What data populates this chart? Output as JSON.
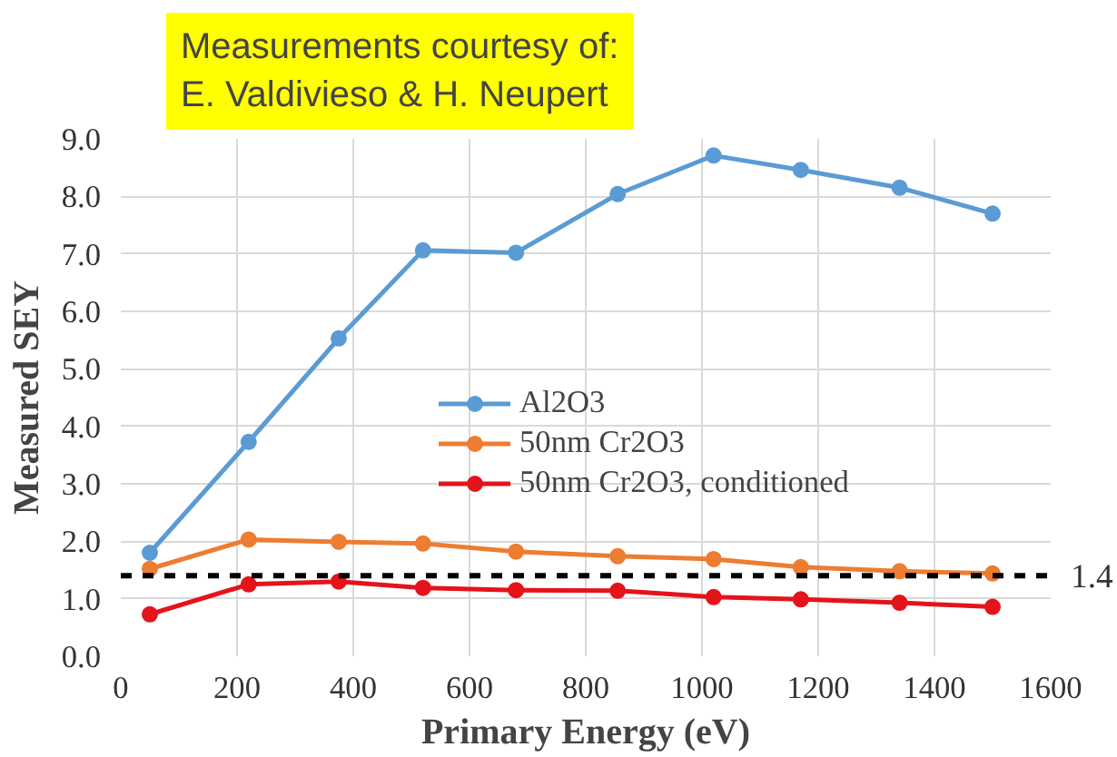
{
  "chart_data": {
    "type": "line",
    "xlabel": "Primary Energy (eV)",
    "ylabel": "Measured SEY",
    "annotations": [
      "Measurements courtesy of:\nE. Valdivieso &  H. Neupert"
    ],
    "x": [
      50,
      220,
      375,
      520,
      680,
      855,
      1020,
      1170,
      1340,
      1500
    ],
    "series": [
      {
        "name": "Al2O3",
        "color": "#5b9bd5",
        "values": [
          1.8,
          3.73,
          5.53,
          7.06,
          7.02,
          8.04,
          8.71,
          8.46,
          8.15,
          7.7
        ]
      },
      {
        "name": "50nm Cr2O3",
        "color": "#ed7d31",
        "values": [
          1.52,
          2.03,
          1.99,
          1.96,
          1.82,
          1.74,
          1.69,
          1.55,
          1.48,
          1.44
        ]
      },
      {
        "name": "50nm Cr2O3, conditioned",
        "color": "#e4141b",
        "values": [
          0.73,
          1.25,
          1.3,
          1.19,
          1.15,
          1.14,
          1.03,
          0.99,
          0.93,
          0.86
        ]
      }
    ],
    "xlim": [
      0,
      1600
    ],
    "xticks": [
      0,
      200,
      400,
      600,
      800,
      1000,
      1200,
      1400,
      1600
    ],
    "ylim": [
      0,
      9
    ],
    "yticks": [
      {
        "value": 0,
        "label": "0.0"
      },
      {
        "value": 1,
        "label": "1.0"
      },
      {
        "value": 2,
        "label": "2.0"
      },
      {
        "value": 3,
        "label": "3.0"
      },
      {
        "value": 4,
        "label": "4.0"
      },
      {
        "value": 5,
        "label": "5.0"
      },
      {
        "value": 6,
        "label": "6.0"
      },
      {
        "value": 7,
        "label": "7.0"
      },
      {
        "value": 8,
        "label": "8.0"
      },
      {
        "value": 9,
        "label": "9.0"
      }
    ],
    "ref_lines": [
      {
        "axis": "y",
        "value": 1.4,
        "label": "1.4",
        "color": "#000000",
        "line_style": "dashed"
      }
    ],
    "grid": true,
    "legend": "center",
    "marker": "circle",
    "line_style": "solid"
  }
}
